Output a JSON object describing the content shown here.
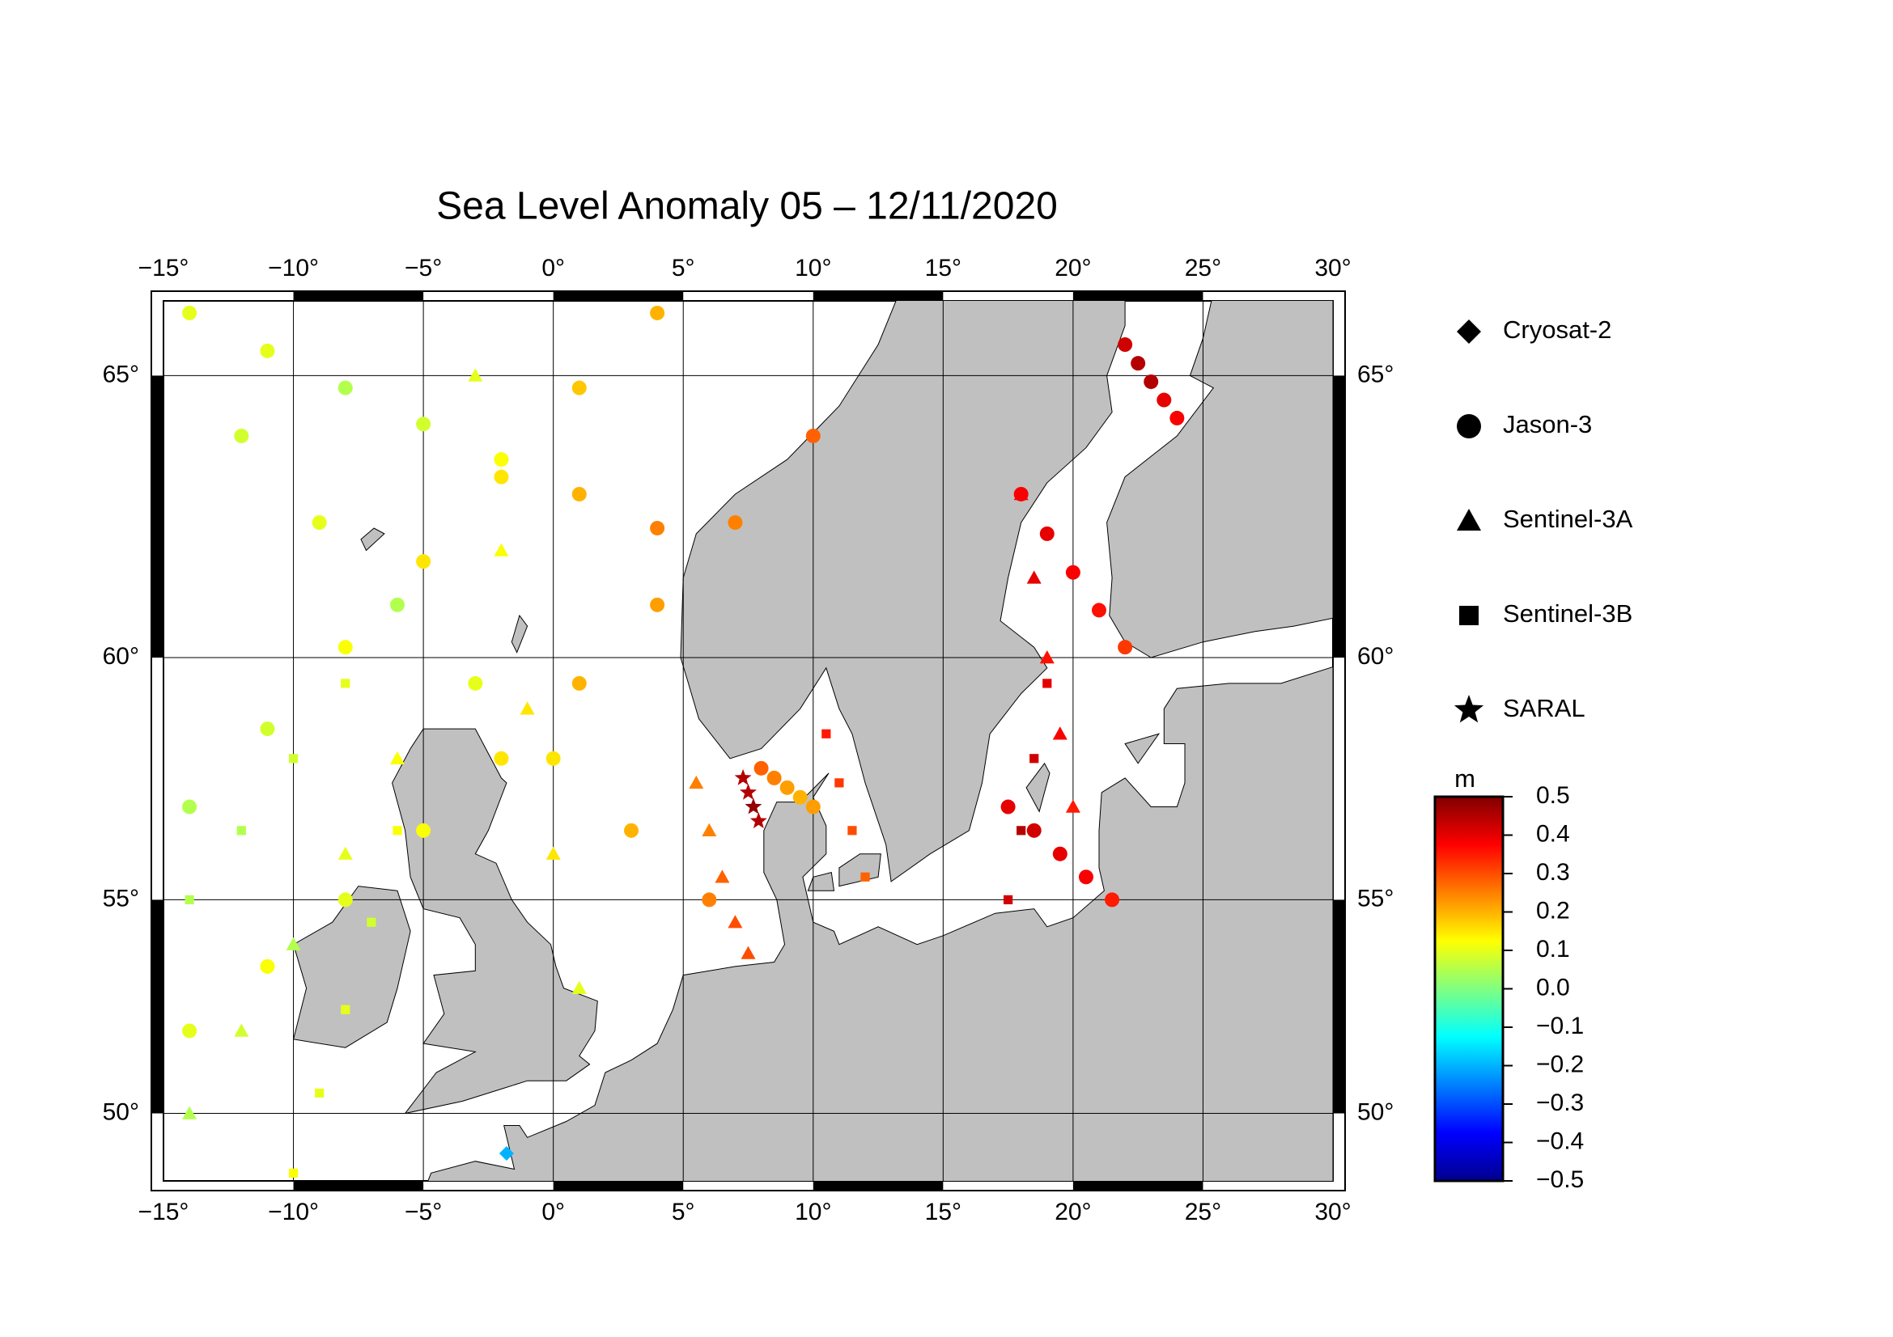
{
  "title": "Sea Level Anomaly 05 – 12/11/2020",
  "map": {
    "projection": "mercator",
    "lon_range": [
      -15,
      30
    ],
    "lat_range": [
      48.3,
      66.3
    ],
    "lon_ticks": [
      {
        "value": -15,
        "label": "−15°"
      },
      {
        "value": -10,
        "label": "−10°"
      },
      {
        "value": -5,
        "label": "−5°"
      },
      {
        "value": 0,
        "label": "0°"
      },
      {
        "value": 5,
        "label": "5°"
      },
      {
        "value": 10,
        "label": "10°"
      },
      {
        "value": 15,
        "label": "15°"
      },
      {
        "value": 20,
        "label": "20°"
      },
      {
        "value": 25,
        "label": "25°"
      },
      {
        "value": 30,
        "label": "30°"
      }
    ],
    "lat_ticks": [
      {
        "value": 50,
        "label": "50°"
      },
      {
        "value": 55,
        "label": "55°"
      },
      {
        "value": 60,
        "label": "60°"
      },
      {
        "value": 65,
        "label": "65°"
      }
    ],
    "grid": true,
    "land_color": "#c0c0c0"
  },
  "legend": [
    {
      "name": "Cryosat-2",
      "marker": "diamond"
    },
    {
      "name": "Jason-3",
      "marker": "circle"
    },
    {
      "name": "Sentinel-3A",
      "marker": "triangle"
    },
    {
      "name": "Sentinel-3B",
      "marker": "square"
    },
    {
      "name": "SARAL",
      "marker": "star"
    }
  ],
  "colorbar": {
    "unit": "m",
    "range": [
      -0.5,
      0.5
    ],
    "colors": [
      "#00008f",
      "#0000ff",
      "#0080ff",
      "#00ffff",
      "#80ff80",
      "#ffff00",
      "#ff8000",
      "#ff0000",
      "#800000"
    ],
    "ticks": [
      0.5,
      0.4,
      0.3,
      0.2,
      0.1,
      {
        "value": 0,
        "label": "0.0"
      },
      {
        "value": -0.1,
        "label": "−0.1"
      },
      {
        "value": -0.2,
        "label": "−0.2"
      },
      {
        "value": -0.3,
        "label": "−0.3"
      },
      {
        "value": -0.4,
        "label": "−0.4"
      },
      {
        "value": -0.5,
        "label": "−0.5"
      }
    ]
  },
  "tracks": [
    {
      "satellite": 1,
      "lon": [
        -14,
        -11,
        -8,
        -5,
        -2,
        1,
        4,
        7,
        10
      ],
      "lat": [
        52,
        53.5,
        55,
        56.5,
        58,
        59.5,
        61,
        62.5,
        64
      ],
      "sla": [
        0.1,
        0.12,
        0.1,
        0.12,
        0.15,
        0.2,
        0.22,
        0.25,
        0.28
      ]
    },
    {
      "satellite": 1,
      "lon": [
        -14,
        -11,
        -8,
        -5,
        -2,
        1,
        4
      ],
      "lat": [
        57,
        58.6,
        60.2,
        61.8,
        63.3,
        64.8,
        66
      ],
      "sla": [
        0.05,
        0.08,
        0.12,
        0.15,
        0.15,
        0.18,
        0.2
      ]
    },
    {
      "satellite": 1,
      "lon": [
        -12,
        -9,
        -6,
        -3,
        0,
        3,
        6
      ],
      "lat": [
        64,
        62.5,
        61,
        59.5,
        58,
        56.5,
        55
      ],
      "sla": [
        0.08,
        0.1,
        0.05,
        0.1,
        0.15,
        0.2,
        0.25
      ]
    },
    {
      "satellite": 1,
      "lon": [
        -14,
        -11,
        -8,
        -5,
        -2,
        1,
        4
      ],
      "lat": [
        66,
        65.4,
        64.8,
        64.2,
        63.6,
        63,
        62.4
      ],
      "sla": [
        0.1,
        0.1,
        0.05,
        0.08,
        0.12,
        0.2,
        0.25
      ]
    },
    {
      "satellite": 1,
      "lon": [
        18,
        19,
        20,
        21,
        22
      ],
      "lat": [
        63,
        62.3,
        61.6,
        60.9,
        60.2
      ],
      "sla": [
        0.38,
        0.4,
        0.38,
        0.36,
        0.32
      ]
    },
    {
      "satellite": 1,
      "lon": [
        17.5,
        18.5,
        19.5,
        20.5,
        21.5
      ],
      "lat": [
        57,
        56.5,
        56,
        55.5,
        55
      ],
      "sla": [
        0.4,
        0.42,
        0.4,
        0.38,
        0.35
      ]
    },
    {
      "satellite": 1,
      "lon": [
        22,
        22.5,
        23,
        23.5,
        24
      ],
      "lat": [
        65.5,
        65.2,
        64.9,
        64.6,
        64.3
      ],
      "sla": [
        0.42,
        0.45,
        0.45,
        0.4,
        0.38
      ]
    },
    {
      "satellite": 1,
      "lon": [
        8,
        8.5,
        9,
        9.5,
        10
      ],
      "lat": [
        57.8,
        57.6,
        57.4,
        57.2,
        57
      ],
      "sla": [
        0.28,
        0.25,
        0.22,
        0.2,
        0.22
      ]
    },
    {
      "satellite": 2,
      "lon": [
        -3,
        -2,
        -1,
        0,
        1
      ],
      "lat": [
        65,
        62,
        59,
        56,
        53
      ],
      "sla": [
        0.1,
        0.12,
        0.15,
        0.15,
        0.1
      ]
    },
    {
      "satellite": 2,
      "lon": [
        5.5,
        6,
        6.5,
        7,
        7.5
      ],
      "lat": [
        57.5,
        56.5,
        55.5,
        54.5,
        53.8
      ],
      "sla": [
        0.25,
        0.25,
        0.28,
        0.3,
        0.3
      ]
    },
    {
      "satellite": 2,
      "lon": [
        18,
        18.5,
        19,
        19.5,
        20
      ],
      "lat": [
        63,
        61.5,
        60,
        58.5,
        57
      ],
      "sla": [
        0.38,
        0.4,
        0.36,
        0.38,
        0.35
      ]
    },
    {
      "satellite": 2,
      "lon": [
        -14,
        -12,
        -10,
        -8,
        -6
      ],
      "lat": [
        50,
        52,
        54,
        56,
        58
      ],
      "sla": [
        0.05,
        0.08,
        0.05,
        0.1,
        0.12
      ]
    },
    {
      "satellite": 3,
      "lon": [
        -10,
        -9,
        -8,
        -7,
        -6
      ],
      "lat": [
        48.5,
        50.5,
        52.5,
        54.5,
        56.5
      ],
      "sla": [
        0.12,
        0.1,
        0.1,
        0.08,
        0.12
      ]
    },
    {
      "satellite": 3,
      "lon": [
        10.5,
        11,
        11.5,
        12
      ],
      "lat": [
        58.5,
        57.5,
        56.5,
        55.5
      ],
      "sla": [
        0.35,
        0.32,
        0.3,
        0.28
      ]
    },
    {
      "satellite": 3,
      "lon": [
        17.5,
        18,
        18.5,
        19
      ],
      "lat": [
        55,
        56.5,
        58,
        59.5
      ],
      "sla": [
        0.42,
        0.45,
        0.42,
        0.4
      ]
    },
    {
      "satellite": 3,
      "lon": [
        -14,
        -12,
        -10,
        -8
      ],
      "lat": [
        55,
        56.5,
        58,
        59.5
      ],
      "sla": [
        0.05,
        0.05,
        0.08,
        0.1
      ]
    },
    {
      "satellite": 4,
      "lon": [
        7.3,
        7.5,
        7.7,
        7.9
      ],
      "lat": [
        57.6,
        57.3,
        57,
        56.7
      ],
      "sla": [
        0.45,
        0.45,
        0.48,
        0.45
      ]
    },
    {
      "satellite": 0,
      "lon": [
        -1.8
      ],
      "lat": [
        49
      ],
      "sla": [
        -0.2
      ]
    }
  ]
}
